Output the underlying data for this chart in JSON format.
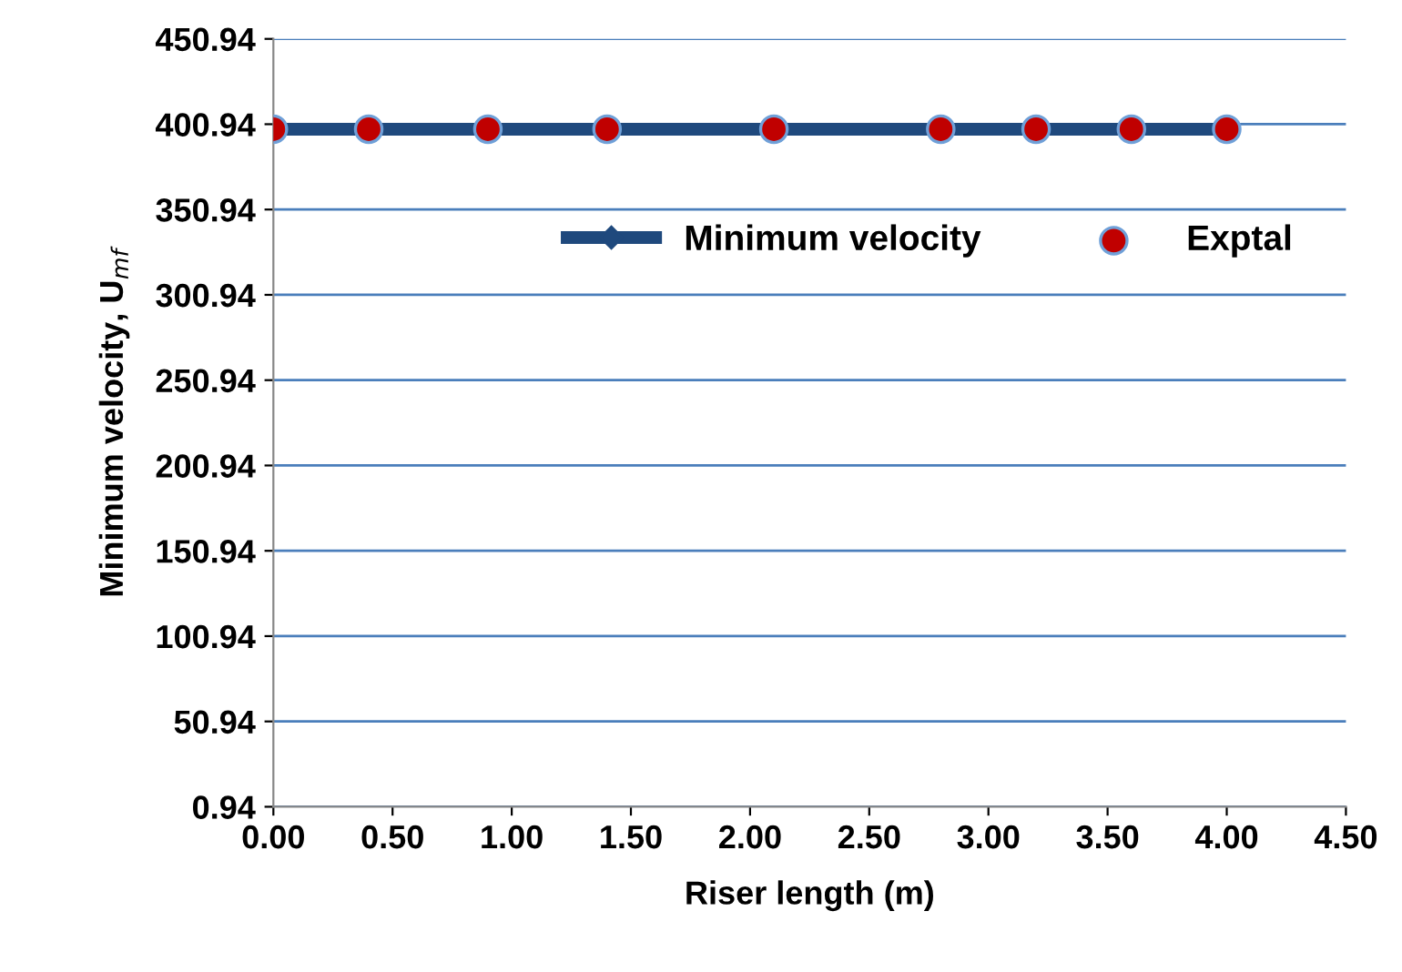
{
  "chart_data": {
    "type": "line",
    "xlabel": "Riser length (m)",
    "ylabel": "Minimum velocity, U$_{mf}$",
    "x": [
      0.0,
      0.4,
      0.9,
      1.4,
      2.1,
      2.8,
      3.2,
      3.6,
      4.0
    ],
    "series": [
      {
        "name": "Minimum velocity",
        "color": "#1f497d",
        "marker": "diamond",
        "values": [
          398,
          398,
          398,
          398,
          398,
          398,
          398,
          398,
          398
        ]
      },
      {
        "name": "Exptal",
        "type": "scatter",
        "color": "#c00000",
        "marker": "circle",
        "values": [
          398,
          398,
          398,
          398,
          398,
          398,
          398,
          398,
          398
        ]
      }
    ],
    "xlim": [
      0,
      4.5
    ],
    "xticks": [
      {
        "value": 0,
        "label": "0.00"
      },
      {
        "value": 0.5,
        "label": "0.50"
      },
      {
        "value": 1,
        "label": "1.00"
      },
      {
        "value": 1.5,
        "label": "1.50"
      },
      {
        "value": 2,
        "label": "2.00"
      },
      {
        "value": 2.5,
        "label": "2.50"
      },
      {
        "value": 3,
        "label": "3.00"
      },
      {
        "value": 3.5,
        "label": "3.50"
      },
      {
        "value": 4,
        "label": "4.00"
      },
      {
        "value": 4.5,
        "label": "4.50"
      }
    ],
    "ylim": [
      0.94,
      450.94
    ],
    "yticks": [
      0.94,
      50.94,
      100.94,
      150.94,
      200.94,
      250.94,
      300.94,
      350.94,
      400.94,
      450.94
    ],
    "grid": "y",
    "legend": "top right"
  }
}
